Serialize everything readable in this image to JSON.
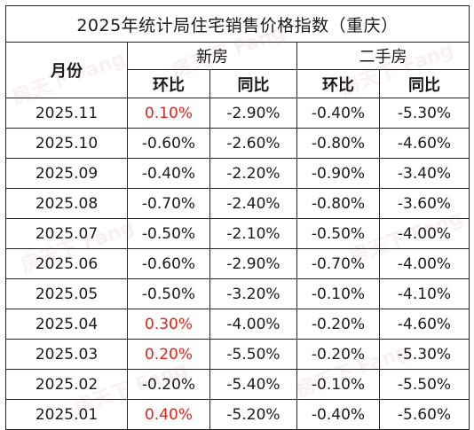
{
  "table": {
    "title": "2025年统计局住宅销售价格指数（重庆）",
    "month_header": "月份",
    "groups": [
      "新房",
      "二手房"
    ],
    "subheaders": [
      "环比",
      "同比",
      "环比",
      "同比"
    ],
    "rows": [
      {
        "month": "2025.11",
        "new_mom": "0.10%",
        "new_yoy": "-2.90%",
        "used_mom": "-0.40%",
        "used_yoy": "-5.30%"
      },
      {
        "month": "2025.10",
        "new_mom": "-0.60%",
        "new_yoy": "-2.60%",
        "used_mom": "-0.80%",
        "used_yoy": "-4.60%"
      },
      {
        "month": "2025.09",
        "new_mom": "-0.40%",
        "new_yoy": "-2.20%",
        "used_mom": "-0.90%",
        "used_yoy": "-3.40%"
      },
      {
        "month": "2025.08",
        "new_mom": "-0.70%",
        "new_yoy": "-2.40%",
        "used_mom": "-0.80%",
        "used_yoy": "-3.60%"
      },
      {
        "month": "2025.07",
        "new_mom": "-0.50%",
        "new_yoy": "-2.10%",
        "used_mom": "-0.50%",
        "used_yoy": "-4.00%"
      },
      {
        "month": "2025.06",
        "new_mom": "-0.60%",
        "new_yoy": "-2.90%",
        "used_mom": "-0.70%",
        "used_yoy": "-4.00%"
      },
      {
        "month": "2025.05",
        "new_mom": "-0.50%",
        "new_yoy": "-3.20%",
        "used_mom": "-0.10%",
        "used_yoy": "-4.10%"
      },
      {
        "month": "2025.04",
        "new_mom": "0.30%",
        "new_yoy": "-4.00%",
        "used_mom": "-0.20%",
        "used_yoy": "-4.60%"
      },
      {
        "month": "2025.03",
        "new_mom": "0.20%",
        "new_yoy": "-5.50%",
        "used_mom": "-0.20%",
        "used_yoy": "-5.30%"
      },
      {
        "month": "2025.02",
        "new_mom": "-0.20%",
        "new_yoy": "-5.40%",
        "used_mom": "-0.10%",
        "used_yoy": "-5.50%"
      },
      {
        "month": "2025.01",
        "new_mom": "0.40%",
        "new_yoy": "-5.20%",
        "used_mom": "-0.40%",
        "used_yoy": "-5.60%"
      }
    ]
  },
  "colors": {
    "positive": "#e2231a",
    "text": "#1a1a1a",
    "border": "#222222"
  },
  "watermark": {
    "text": "房天下 Fang",
    "icon": "fang-watermark-icon"
  }
}
